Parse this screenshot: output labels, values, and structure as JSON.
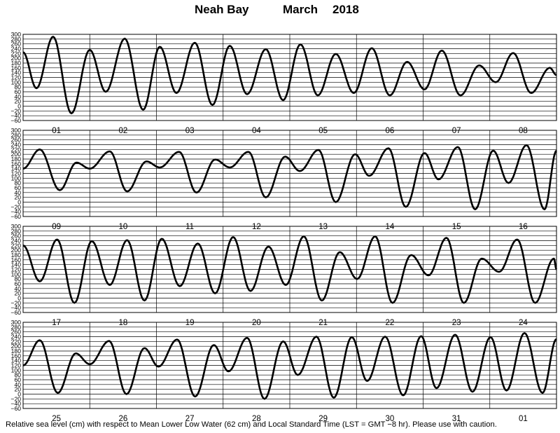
{
  "title": {
    "station": "Neah Bay",
    "month": "March",
    "year": "2018"
  },
  "caption": "Relative sea level (cm) with respect to Mean Lower Low Water (62 cm) and Local Standard Time (LST = GMT −8 hr). Please use with caution.",
  "chart_data": {
    "type": "line",
    "ylabel": "",
    "xlabel": "",
    "y_range": [
      -60,
      300
    ],
    "y_ticks": [
      "300",
      "280",
      "260",
      "240",
      "220",
      "200",
      "180",
      "160",
      "140",
      "120",
      "100",
      "80",
      "60",
      "40",
      "20",
      "0",
      "−20",
      "−40",
      "−60"
    ],
    "grid": true,
    "line_color": "#000000",
    "panels": [
      {
        "days": [
          "01",
          "02",
          "03",
          "04",
          "05",
          "06",
          "07",
          "08"
        ],
        "keypoints": [
          [
            0,
            225
          ],
          [
            0.4,
            75
          ],
          [
            0.9,
            290
          ],
          [
            1.45,
            -30
          ],
          [
            2.0,
            235
          ],
          [
            2.48,
            60
          ],
          [
            3.05,
            282
          ],
          [
            3.6,
            -15
          ],
          [
            4.1,
            248
          ],
          [
            4.6,
            55
          ],
          [
            5.15,
            265
          ],
          [
            5.68,
            5
          ],
          [
            6.2,
            252
          ],
          [
            6.72,
            50
          ],
          [
            7.28,
            238
          ],
          [
            7.8,
            25
          ],
          [
            8.32,
            258
          ],
          [
            8.84,
            45
          ],
          [
            9.38,
            218
          ],
          [
            9.92,
            55
          ],
          [
            10.46,
            242
          ],
          [
            11.0,
            45
          ],
          [
            11.52,
            185
          ],
          [
            12.04,
            70
          ],
          [
            12.56,
            232
          ],
          [
            13.12,
            45
          ],
          [
            13.68,
            170
          ],
          [
            14.18,
            100
          ],
          [
            14.7,
            222
          ],
          [
            15.24,
            55
          ],
          [
            15.8,
            160
          ],
          [
            16.0,
            130
          ]
        ]
      },
      {
        "days": [
          "09",
          "10",
          "11",
          "12",
          "13",
          "14",
          "15",
          "16"
        ],
        "keypoints": [
          [
            0,
            140
          ],
          [
            0.5,
            220
          ],
          [
            1.1,
            50
          ],
          [
            1.6,
            165
          ],
          [
            2.0,
            140
          ],
          [
            2.6,
            212
          ],
          [
            3.12,
            45
          ],
          [
            3.7,
            170
          ],
          [
            4.1,
            145
          ],
          [
            4.68,
            210
          ],
          [
            5.2,
            40
          ],
          [
            5.76,
            178
          ],
          [
            6.2,
            145
          ],
          [
            6.76,
            210
          ],
          [
            7.28,
            20
          ],
          [
            7.86,
            190
          ],
          [
            8.3,
            130
          ],
          [
            8.86,
            218
          ],
          [
            9.38,
            0
          ],
          [
            9.96,
            200
          ],
          [
            10.38,
            110
          ],
          [
            10.96,
            225
          ],
          [
            11.48,
            -20
          ],
          [
            12.04,
            205
          ],
          [
            12.46,
            95
          ],
          [
            13.04,
            230
          ],
          [
            13.56,
            -30
          ],
          [
            14.1,
            215
          ],
          [
            14.56,
            80
          ],
          [
            15.1,
            238
          ],
          [
            15.64,
            -30
          ],
          [
            16.0,
            215
          ]
        ]
      },
      {
        "days": [
          "17",
          "18",
          "19",
          "20",
          "21",
          "22",
          "23",
          "24"
        ],
        "keypoints": [
          [
            0,
            220
          ],
          [
            0.5,
            70
          ],
          [
            1.02,
            245
          ],
          [
            1.54,
            -20
          ],
          [
            2.06,
            238
          ],
          [
            2.6,
            55
          ],
          [
            3.12,
            242
          ],
          [
            3.64,
            -10
          ],
          [
            4.16,
            248
          ],
          [
            4.7,
            50
          ],
          [
            5.24,
            228
          ],
          [
            5.76,
            20
          ],
          [
            6.3,
            255
          ],
          [
            6.82,
            30
          ],
          [
            7.36,
            215
          ],
          [
            7.88,
            55
          ],
          [
            8.42,
            258
          ],
          [
            8.96,
            -10
          ],
          [
            9.5,
            192
          ],
          [
            10.02,
            80
          ],
          [
            10.56,
            258
          ],
          [
            11.08,
            -20
          ],
          [
            11.64,
            180
          ],
          [
            12.16,
            95
          ],
          [
            12.7,
            252
          ],
          [
            13.22,
            -20
          ],
          [
            13.76,
            165
          ],
          [
            14.28,
            110
          ],
          [
            14.82,
            245
          ],
          [
            15.36,
            -20
          ],
          [
            15.92,
            165
          ],
          [
            16.0,
            120
          ]
        ]
      },
      {
        "days": [
          "25",
          "26",
          "27",
          "28",
          "29",
          "30",
          "31",
          "01"
        ],
        "keypoints": [
          [
            0,
            120
          ],
          [
            0.5,
            225
          ],
          [
            1.04,
            5
          ],
          [
            1.58,
            170
          ],
          [
            2.0,
            125
          ],
          [
            2.58,
            222
          ],
          [
            3.1,
            0
          ],
          [
            3.64,
            192
          ],
          [
            4.06,
            115
          ],
          [
            4.62,
            228
          ],
          [
            5.16,
            -10
          ],
          [
            5.72,
            205
          ],
          [
            6.16,
            95
          ],
          [
            6.72,
            235
          ],
          [
            7.24,
            -20
          ],
          [
            7.8,
            220
          ],
          [
            8.24,
            80
          ],
          [
            8.8,
            240
          ],
          [
            9.32,
            -15
          ],
          [
            9.86,
            238
          ],
          [
            10.32,
            55
          ],
          [
            10.86,
            240
          ],
          [
            11.4,
            -5
          ],
          [
            11.94,
            242
          ],
          [
            12.4,
            25
          ],
          [
            12.96,
            248
          ],
          [
            13.48,
            10
          ],
          [
            14.02,
            238
          ],
          [
            14.5,
            15
          ],
          [
            15.04,
            255
          ],
          [
            15.58,
            5
          ],
          [
            16.0,
            230
          ]
        ]
      }
    ]
  }
}
